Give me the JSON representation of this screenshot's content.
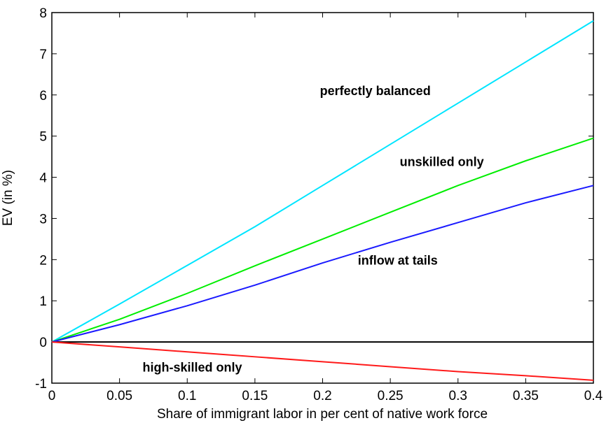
{
  "chart_data": {
    "type": "line",
    "title": "",
    "xlabel": "Share of immigrant labor in per cent of native work force",
    "ylabel": "EV (in %)",
    "xlim": [
      0,
      0.4
    ],
    "ylim": [
      -1,
      8
    ],
    "xticks": [
      0,
      0.05,
      0.1,
      0.15,
      0.2,
      0.25,
      0.3,
      0.35,
      0.4
    ],
    "xtick_labels": [
      "0",
      "0.05",
      "0.1",
      "0.15",
      "0.2",
      "0.25",
      "0.3",
      "0.35",
      "0.4"
    ],
    "yticks": [
      -1,
      0,
      1,
      2,
      3,
      4,
      5,
      6,
      7,
      8
    ],
    "ytick_labels": [
      "-1",
      "0",
      "1",
      "2",
      "3",
      "4",
      "5",
      "6",
      "7",
      "8"
    ],
    "grid": false,
    "zero_line": true,
    "x": [
      0,
      0.05,
      0.1,
      0.15,
      0.2,
      0.25,
      0.3,
      0.35,
      0.4
    ],
    "series": [
      {
        "key": "perfectly-balanced",
        "color": "#00e5ff",
        "values": [
          0,
          0.92,
          1.86,
          2.8,
          3.8,
          4.8,
          5.8,
          6.8,
          7.8
        ]
      },
      {
        "key": "unskilled-only",
        "color": "#00ee00",
        "values": [
          0,
          0.55,
          1.18,
          1.85,
          2.5,
          3.15,
          3.8,
          4.4,
          4.95
        ]
      },
      {
        "key": "inflow-at-tails",
        "color": "#1a1aff",
        "values": [
          0,
          0.42,
          0.88,
          1.38,
          1.92,
          2.42,
          2.9,
          3.38,
          3.8
        ]
      },
      {
        "key": "high-skilled-only",
        "color": "#ff1a1a",
        "values": [
          0,
          -0.12,
          -0.24,
          -0.36,
          -0.48,
          -0.6,
          -0.72,
          -0.82,
          -0.93
        ]
      }
    ],
    "annotations": [
      {
        "key": "perfectly-balanced",
        "text": "perfectly balanced",
        "x": 0.198,
        "y": 6.0
      },
      {
        "key": "unskilled-only",
        "text": "unskilled only",
        "x": 0.257,
        "y": 4.27
      },
      {
        "key": "inflow-at-tails",
        "text": "inflow at tails",
        "x": 0.226,
        "y": 1.88
      },
      {
        "key": "high-skilled-only",
        "text": "high-skilled only",
        "x": 0.067,
        "y": -0.72
      }
    ]
  }
}
